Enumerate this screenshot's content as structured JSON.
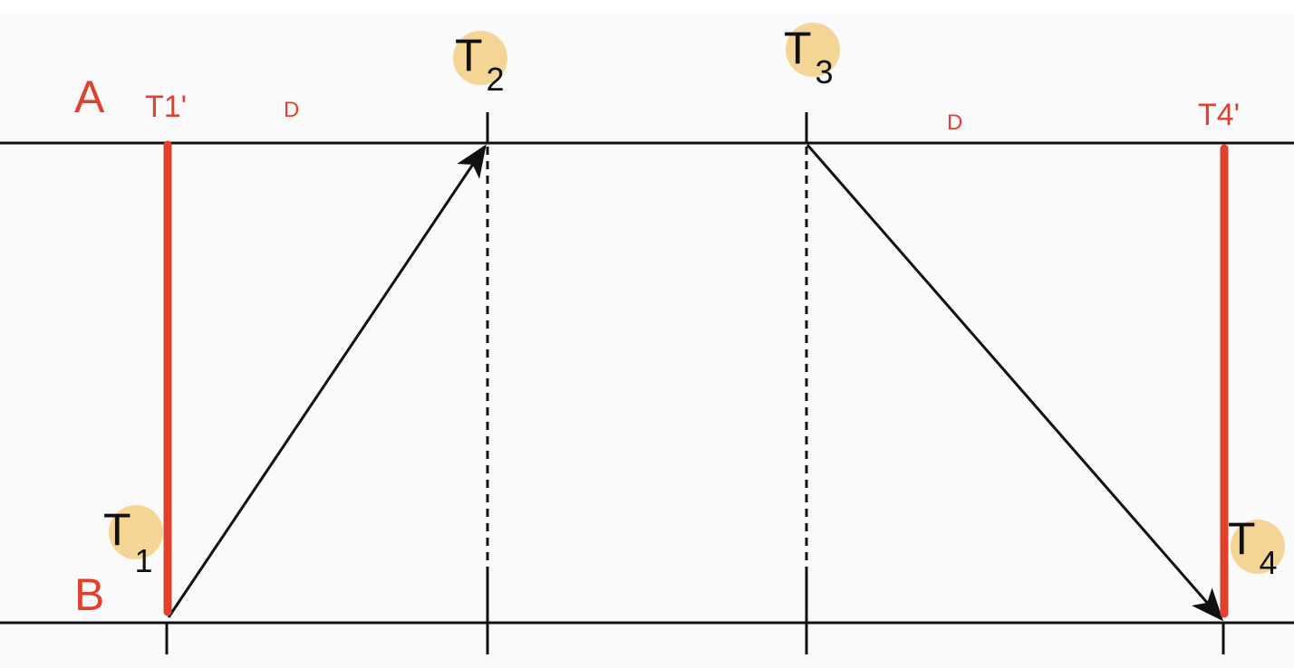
{
  "labels": {
    "line_a": "A",
    "line_b": "B",
    "t1_prime": "T1'",
    "t4_prime": "T4'",
    "delay_left": "D",
    "delay_right": "D"
  },
  "events": {
    "t1": {
      "letter": "T",
      "sub": "1"
    },
    "t2": {
      "letter": "T",
      "sub": "2"
    },
    "t3": {
      "letter": "T",
      "sub": "3"
    },
    "t4": {
      "letter": "T",
      "sub": "4"
    }
  },
  "colors": {
    "background": "#fafafa",
    "line": "#111111",
    "red": "#e0412f",
    "highlight": "#f5d596"
  }
}
